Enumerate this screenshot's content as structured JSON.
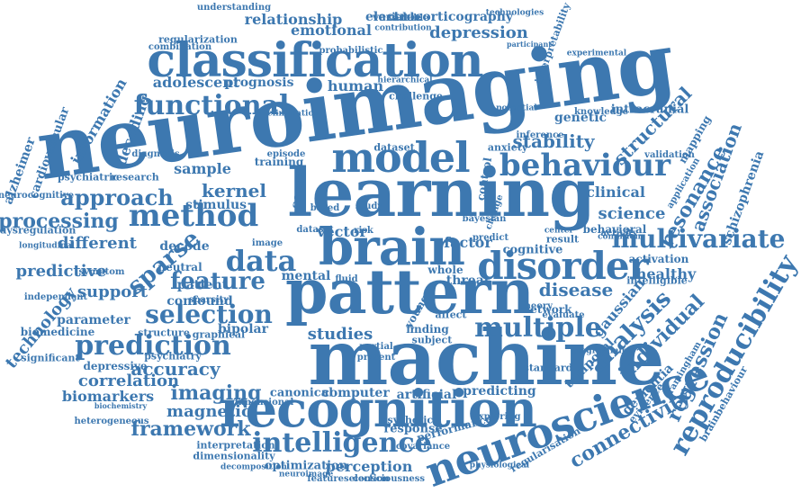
{
  "colors": {
    "primary": "#3d78b0",
    "secondary": "#2e5f8e",
    "light": "#5a8fc0",
    "background": "#ffffff"
  },
  "words": [
    "neuroimaging",
    "machine",
    "learning",
    "pattern",
    "brain",
    "recognition",
    "classification",
    "model",
    "neuroscience",
    "disorder",
    "behaviour",
    "method",
    "multivariate",
    "intelligence",
    "data",
    "prediction",
    "functional",
    "feature",
    "selection",
    "multiple",
    "reproducibility",
    "analysis",
    "regression",
    "individual",
    "sparse",
    "approach",
    "kernel",
    "stability",
    "resonance",
    "association",
    "connectivity",
    "processing",
    "disease",
    "imaging",
    "accuracy",
    "framework",
    "magnetic",
    "correlation",
    "science",
    "different",
    "predictive",
    "support",
    "structural",
    "depression",
    "relationship",
    "electrocorticography",
    "emotional",
    "adolescent",
    "information",
    "technology",
    "schizophrenia",
    "healthy",
    "gaussian",
    "temporal",
    "dementia",
    "biomarkers",
    "parameter",
    "perception",
    "studies",
    "response",
    "computer",
    "artificial",
    "predicting",
    "canonical",
    "optimization",
    "interpretation",
    "dimensionality",
    "vector",
    "factor",
    "clinical",
    "genetic",
    "intracranial",
    "alzheimer",
    "cardiovascular",
    "decoding",
    "prognosis",
    "human",
    "sample",
    "stimulus",
    "bipolar",
    "mapping",
    "behavioral",
    "activation",
    "cognitive",
    "network",
    "finding",
    "subject",
    "threat",
    "whole",
    "depressive",
    "significant",
    "biomedicine",
    "psychiatry",
    "graphical",
    "structure",
    "dimensional",
    "performance",
    "covariance",
    "consciousness",
    "featureselection",
    "decomposition",
    "neuroimage",
    "challenge",
    "probabilistic",
    "variable",
    "bayesian",
    "dataset",
    "variable",
    "score",
    "based",
    "study",
    "risk",
    "neurocognitive",
    "dysregulation",
    "symptom",
    "longitudinal",
    "independent",
    "heterogeneous",
    "biochemistry",
    "psychotic",
    "evidence",
    "regularisation",
    "physiological",
    "framingham",
    "brainbehaviour",
    "interpretability",
    "experimental",
    "participant",
    "combination",
    "regularization",
    "understanding",
    "technologies",
    "contribution",
    "confound",
    "patient",
    "neutral",
    "image",
    "sparsity",
    "decode",
    "dataset",
    "elimination",
    "mental",
    "episode",
    "training",
    "diagnosis",
    "psychiatric",
    "research",
    "hierarchical",
    "potential",
    "knowledge",
    "validation",
    "application",
    "result",
    "center",
    "affect",
    "young",
    "present",
    "partial",
    "standard",
    "exploring",
    "programming",
    "intelligible",
    "theory",
    "evaluate",
    "condition",
    "activity",
    "control",
    "anxiety",
    "inference",
    "predict",
    "change",
    "fluid"
  ]
}
